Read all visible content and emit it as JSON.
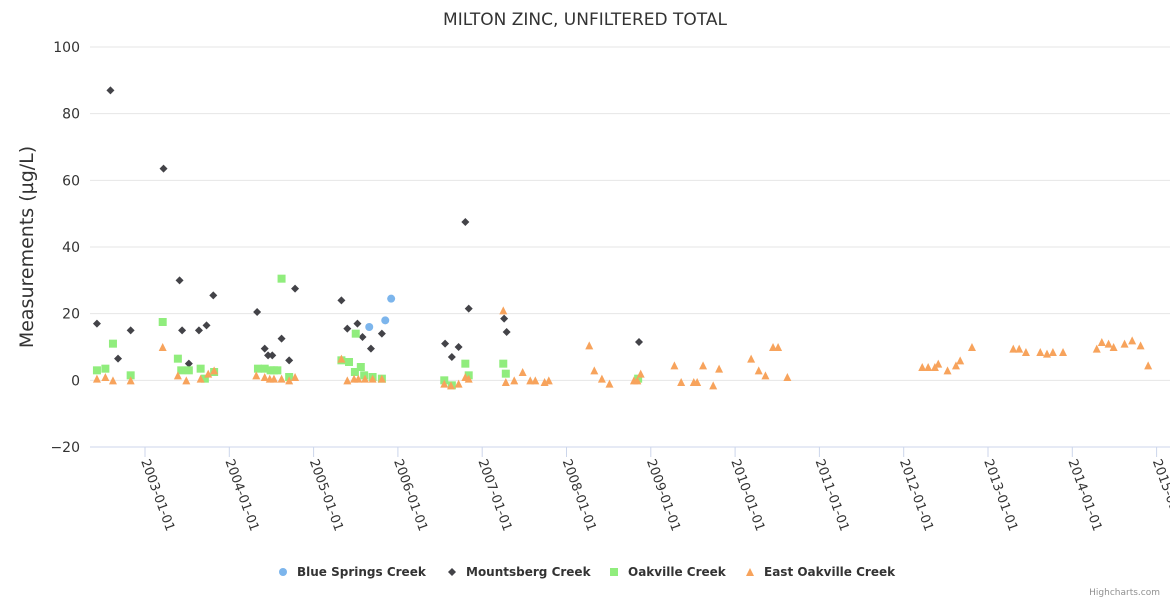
{
  "chart_data": {
    "type": "scatter",
    "title": "MILTON ZINC, UNFILTERED TOTAL",
    "xlabel": "",
    "ylabel": "Measurements (µg/L)",
    "ylim": [
      -20,
      100
    ],
    "yticks": [
      "−20",
      "0",
      "20",
      "40",
      "60",
      "80",
      "100"
    ],
    "ytick_values": [
      -20,
      0,
      20,
      40,
      60,
      80,
      100
    ],
    "xlim": [
      2002.35,
      2015.15
    ],
    "xticks": [
      "2003-01-01",
      "2004-01-01",
      "2005-01-01",
      "2006-01-01",
      "2007-01-01",
      "2008-01-01",
      "2009-01-01",
      "2010-01-01",
      "2011-01-01",
      "2012-01-01",
      "2013-01-01",
      "2014-01-01",
      "2015-01-01"
    ],
    "xtick_values": [
      2003,
      2004,
      2005,
      2006,
      2007,
      2008,
      2009,
      2010,
      2011,
      2012,
      2013,
      2014,
      2015
    ],
    "grid": true,
    "legend_position": "bottom-center",
    "credits": "Highcharts.com",
    "series": [
      {
        "name": "Blue Springs Creek",
        "color": "#7cb5ec",
        "marker": "circle",
        "points": [
          [
            2005.66,
            16
          ],
          [
            2005.85,
            18
          ],
          [
            2005.92,
            24.5
          ]
        ]
      },
      {
        "name": "Mountsberg Creek",
        "color": "#434348",
        "marker": "diamond",
        "points": [
          [
            2002.43,
            17
          ],
          [
            2002.59,
            87
          ],
          [
            2002.68,
            6.5
          ],
          [
            2002.83,
            15
          ],
          [
            2003.22,
            63.5
          ],
          [
            2003.41,
            30
          ],
          [
            2003.44,
            15
          ],
          [
            2003.52,
            5
          ],
          [
            2003.64,
            15
          ],
          [
            2003.73,
            16.5
          ],
          [
            2003.81,
            25.5
          ],
          [
            2004.33,
            20.5
          ],
          [
            2004.42,
            9.5
          ],
          [
            2004.46,
            7.5
          ],
          [
            2004.51,
            7.5
          ],
          [
            2004.62,
            12.5
          ],
          [
            2004.71,
            6
          ],
          [
            2004.78,
            27.5
          ],
          [
            2005.33,
            24
          ],
          [
            2005.4,
            15.5
          ],
          [
            2005.52,
            17
          ],
          [
            2005.58,
            13
          ],
          [
            2005.68,
            9.5
          ],
          [
            2005.81,
            14
          ],
          [
            2006.56,
            11
          ],
          [
            2006.64,
            7
          ],
          [
            2006.72,
            10
          ],
          [
            2006.8,
            47.5
          ],
          [
            2006.84,
            21.5
          ],
          [
            2007.26,
            18.5
          ],
          [
            2007.29,
            14.5
          ],
          [
            2008.86,
            11.5
          ]
        ]
      },
      {
        "name": "Oakville Creek",
        "color": "#90ed7d",
        "marker": "square",
        "points": [
          [
            2002.43,
            3
          ],
          [
            2002.53,
            3.5
          ],
          [
            2002.62,
            11
          ],
          [
            2002.83,
            1.5
          ],
          [
            2003.21,
            17.5
          ],
          [
            2003.39,
            6.5
          ],
          [
            2003.43,
            3
          ],
          [
            2003.52,
            3
          ],
          [
            2003.66,
            3.5
          ],
          [
            2003.71,
            0.5
          ],
          [
            2003.82,
            2.5
          ],
          [
            2004.34,
            3.5
          ],
          [
            2004.42,
            3.5
          ],
          [
            2004.49,
            3
          ],
          [
            2004.53,
            3
          ],
          [
            2004.57,
            3
          ],
          [
            2004.62,
            30.5
          ],
          [
            2004.71,
            1
          ],
          [
            2005.33,
            6
          ],
          [
            2005.42,
            5.5
          ],
          [
            2005.5,
            14
          ],
          [
            2005.56,
            4
          ],
          [
            2005.49,
            2.5
          ],
          [
            2005.6,
            1.5
          ],
          [
            2005.7,
            1
          ],
          [
            2005.81,
            0.5
          ],
          [
            2006.55,
            0
          ],
          [
            2006.64,
            -1.5
          ],
          [
            2006.8,
            5
          ],
          [
            2006.84,
            1.5
          ],
          [
            2007.25,
            5
          ],
          [
            2007.28,
            2
          ],
          [
            2008.85,
            0.5
          ]
        ]
      },
      {
        "name": "East Oakville Creek",
        "color": "#f7a35c",
        "marker": "triangle",
        "points": [
          [
            2002.43,
            0.5
          ],
          [
            2002.53,
            1
          ],
          [
            2002.62,
            0
          ],
          [
            2002.83,
            0
          ],
          [
            2003.21,
            10
          ],
          [
            2003.39,
            1.5
          ],
          [
            2003.49,
            0
          ],
          [
            2003.66,
            0.5
          ],
          [
            2003.75,
            2
          ],
          [
            2003.82,
            3
          ],
          [
            2004.32,
            1.5
          ],
          [
            2004.42,
            1
          ],
          [
            2004.48,
            0.5
          ],
          [
            2004.53,
            0.5
          ],
          [
            2004.62,
            0.5
          ],
          [
            2004.71,
            0
          ],
          [
            2004.78,
            1
          ],
          [
            2005.33,
            6.5
          ],
          [
            2005.4,
            0
          ],
          [
            2005.48,
            0.5
          ],
          [
            2005.53,
            0.5
          ],
          [
            2005.61,
            0.5
          ],
          [
            2005.7,
            0.5
          ],
          [
            2005.81,
            0.5
          ],
          [
            2006.55,
            -1
          ],
          [
            2006.63,
            -1.5
          ],
          [
            2006.72,
            -1
          ],
          [
            2006.8,
            1
          ],
          [
            2006.84,
            0.5
          ],
          [
            2007.25,
            21
          ],
          [
            2007.28,
            -0.5
          ],
          [
            2007.38,
            0
          ],
          [
            2007.48,
            2.5
          ],
          [
            2007.57,
            0
          ],
          [
            2007.63,
            0
          ],
          [
            2007.74,
            -0.5
          ],
          [
            2007.79,
            0
          ],
          [
            2008.27,
            10.5
          ],
          [
            2008.33,
            3
          ],
          [
            2008.42,
            0.5
          ],
          [
            2008.51,
            -1
          ],
          [
            2008.8,
            0
          ],
          [
            2008.84,
            0
          ],
          [
            2008.88,
            2
          ],
          [
            2009.28,
            4.5
          ],
          [
            2009.36,
            -0.5
          ],
          [
            2009.51,
            -0.5
          ],
          [
            2009.55,
            -0.5
          ],
          [
            2009.62,
            4.5
          ],
          [
            2009.74,
            -1.5
          ],
          [
            2009.81,
            3.5
          ],
          [
            2010.19,
            6.5
          ],
          [
            2010.28,
            3
          ],
          [
            2010.36,
            1.5
          ],
          [
            2010.45,
            10
          ],
          [
            2010.51,
            10
          ],
          [
            2010.62,
            1
          ],
          [
            2012.22,
            4
          ],
          [
            2012.29,
            4
          ],
          [
            2012.37,
            4
          ],
          [
            2012.41,
            5
          ],
          [
            2012.52,
            3
          ],
          [
            2012.62,
            4.5
          ],
          [
            2012.67,
            6
          ],
          [
            2012.81,
            10
          ],
          [
            2013.3,
            9.5
          ],
          [
            2013.37,
            9.5
          ],
          [
            2013.45,
            8.5
          ],
          [
            2013.62,
            8.5
          ],
          [
            2013.7,
            8
          ],
          [
            2013.77,
            8.5
          ],
          [
            2013.89,
            8.5
          ],
          [
            2014.29,
            9.5
          ],
          [
            2014.35,
            11.5
          ],
          [
            2014.43,
            11
          ],
          [
            2014.49,
            10
          ],
          [
            2014.62,
            11
          ],
          [
            2014.71,
            12
          ],
          [
            2014.81,
            10.5
          ],
          [
            2014.9,
            4.5
          ]
        ]
      }
    ]
  }
}
